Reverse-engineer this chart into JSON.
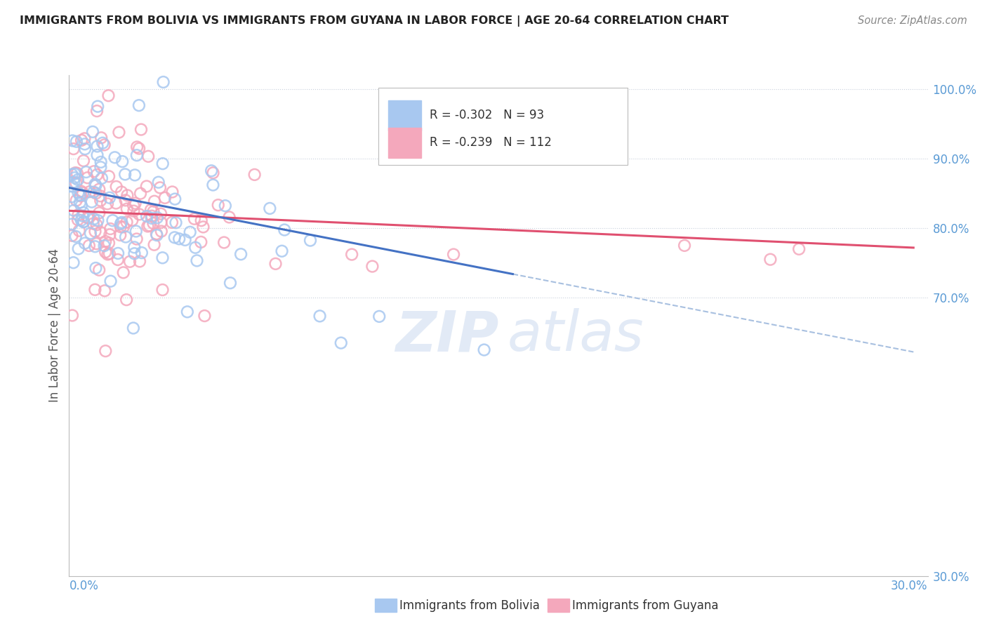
{
  "title": "IMMIGRANTS FROM BOLIVIA VS IMMIGRANTS FROM GUYANA IN LABOR FORCE | AGE 20-64 CORRELATION CHART",
  "source": "Source: ZipAtlas.com",
  "ylabel": "In Labor Force | Age 20-64",
  "xlim": [
    0.0,
    0.3
  ],
  "ylim": [
    0.3,
    1.02
  ],
  "bolivia_R": -0.302,
  "bolivia_N": 93,
  "guyana_R": -0.239,
  "guyana_N": 112,
  "bolivia_color": "#A8C8F0",
  "guyana_color": "#F4A8BC",
  "bolivia_line_color": "#4472C4",
  "guyana_line_color": "#E05070",
  "dashed_line_color": "#A8C0E0",
  "legend_bolivia_label": "Immigrants from Bolivia",
  "legend_guyana_label": "Immigrants from Guyana",
  "ytick_vals": [
    0.7,
    0.8,
    0.9,
    1.0
  ],
  "ytick_labels": [
    "70.0%",
    "80.0%",
    "90.0%",
    "100.0%"
  ],
  "right_label_30": "30.0%",
  "right_color": "#5B9BD5",
  "title_color": "#222222",
  "source_color": "#888888"
}
